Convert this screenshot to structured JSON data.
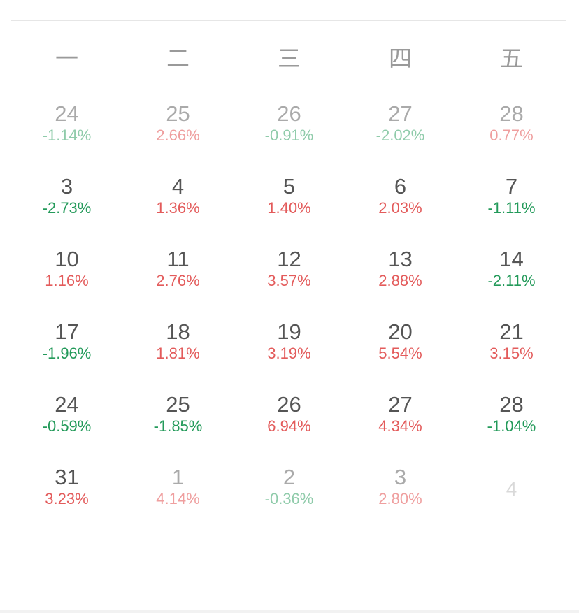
{
  "weekdays": [
    "一",
    "二",
    "三",
    "四",
    "五"
  ],
  "colors": {
    "up": "#e35b5b",
    "down": "#239a5a",
    "text": "#555555",
    "muted": "#aaaaaa"
  },
  "weeks": [
    [
      {
        "day": "24",
        "pct": "-1.14%",
        "trend": "down",
        "faded": true
      },
      {
        "day": "25",
        "pct": "2.66%",
        "trend": "up",
        "faded": true
      },
      {
        "day": "26",
        "pct": "-0.91%",
        "trend": "down",
        "faded": true
      },
      {
        "day": "27",
        "pct": "-2.02%",
        "trend": "down",
        "faded": true
      },
      {
        "day": "28",
        "pct": "0.77%",
        "trend": "up",
        "faded": true
      }
    ],
    [
      {
        "day": "3",
        "pct": "-2.73%",
        "trend": "down"
      },
      {
        "day": "4",
        "pct": "1.36%",
        "trend": "up"
      },
      {
        "day": "5",
        "pct": "1.40%",
        "trend": "up"
      },
      {
        "day": "6",
        "pct": "2.03%",
        "trend": "up"
      },
      {
        "day": "7",
        "pct": "-1.11%",
        "trend": "down"
      }
    ],
    [
      {
        "day": "10",
        "pct": "1.16%",
        "trend": "up"
      },
      {
        "day": "11",
        "pct": "2.76%",
        "trend": "up"
      },
      {
        "day": "12",
        "pct": "3.57%",
        "trend": "up"
      },
      {
        "day": "13",
        "pct": "2.88%",
        "trend": "up"
      },
      {
        "day": "14",
        "pct": "-2.11%",
        "trend": "down"
      }
    ],
    [
      {
        "day": "17",
        "pct": "-1.96%",
        "trend": "down"
      },
      {
        "day": "18",
        "pct": "1.81%",
        "trend": "up"
      },
      {
        "day": "19",
        "pct": "3.19%",
        "trend": "up"
      },
      {
        "day": "20",
        "pct": "5.54%",
        "trend": "up"
      },
      {
        "day": "21",
        "pct": "3.15%",
        "trend": "up"
      }
    ],
    [
      {
        "day": "24",
        "pct": "-0.59%",
        "trend": "down"
      },
      {
        "day": "25",
        "pct": "-1.85%",
        "trend": "down"
      },
      {
        "day": "26",
        "pct": "6.94%",
        "trend": "up"
      },
      {
        "day": "27",
        "pct": "4.34%",
        "trend": "up"
      },
      {
        "day": "28",
        "pct": "-1.04%",
        "trend": "down"
      }
    ],
    [
      {
        "day": "31",
        "pct": "3.23%",
        "trend": "up"
      },
      {
        "day": "1",
        "pct": "4.14%",
        "trend": "up",
        "faded": true
      },
      {
        "day": "2",
        "pct": "-0.36%",
        "trend": "down",
        "faded": true
      },
      {
        "day": "3",
        "pct": "2.80%",
        "trend": "up",
        "faded": true
      },
      {
        "day": "4",
        "empty": true
      }
    ]
  ]
}
